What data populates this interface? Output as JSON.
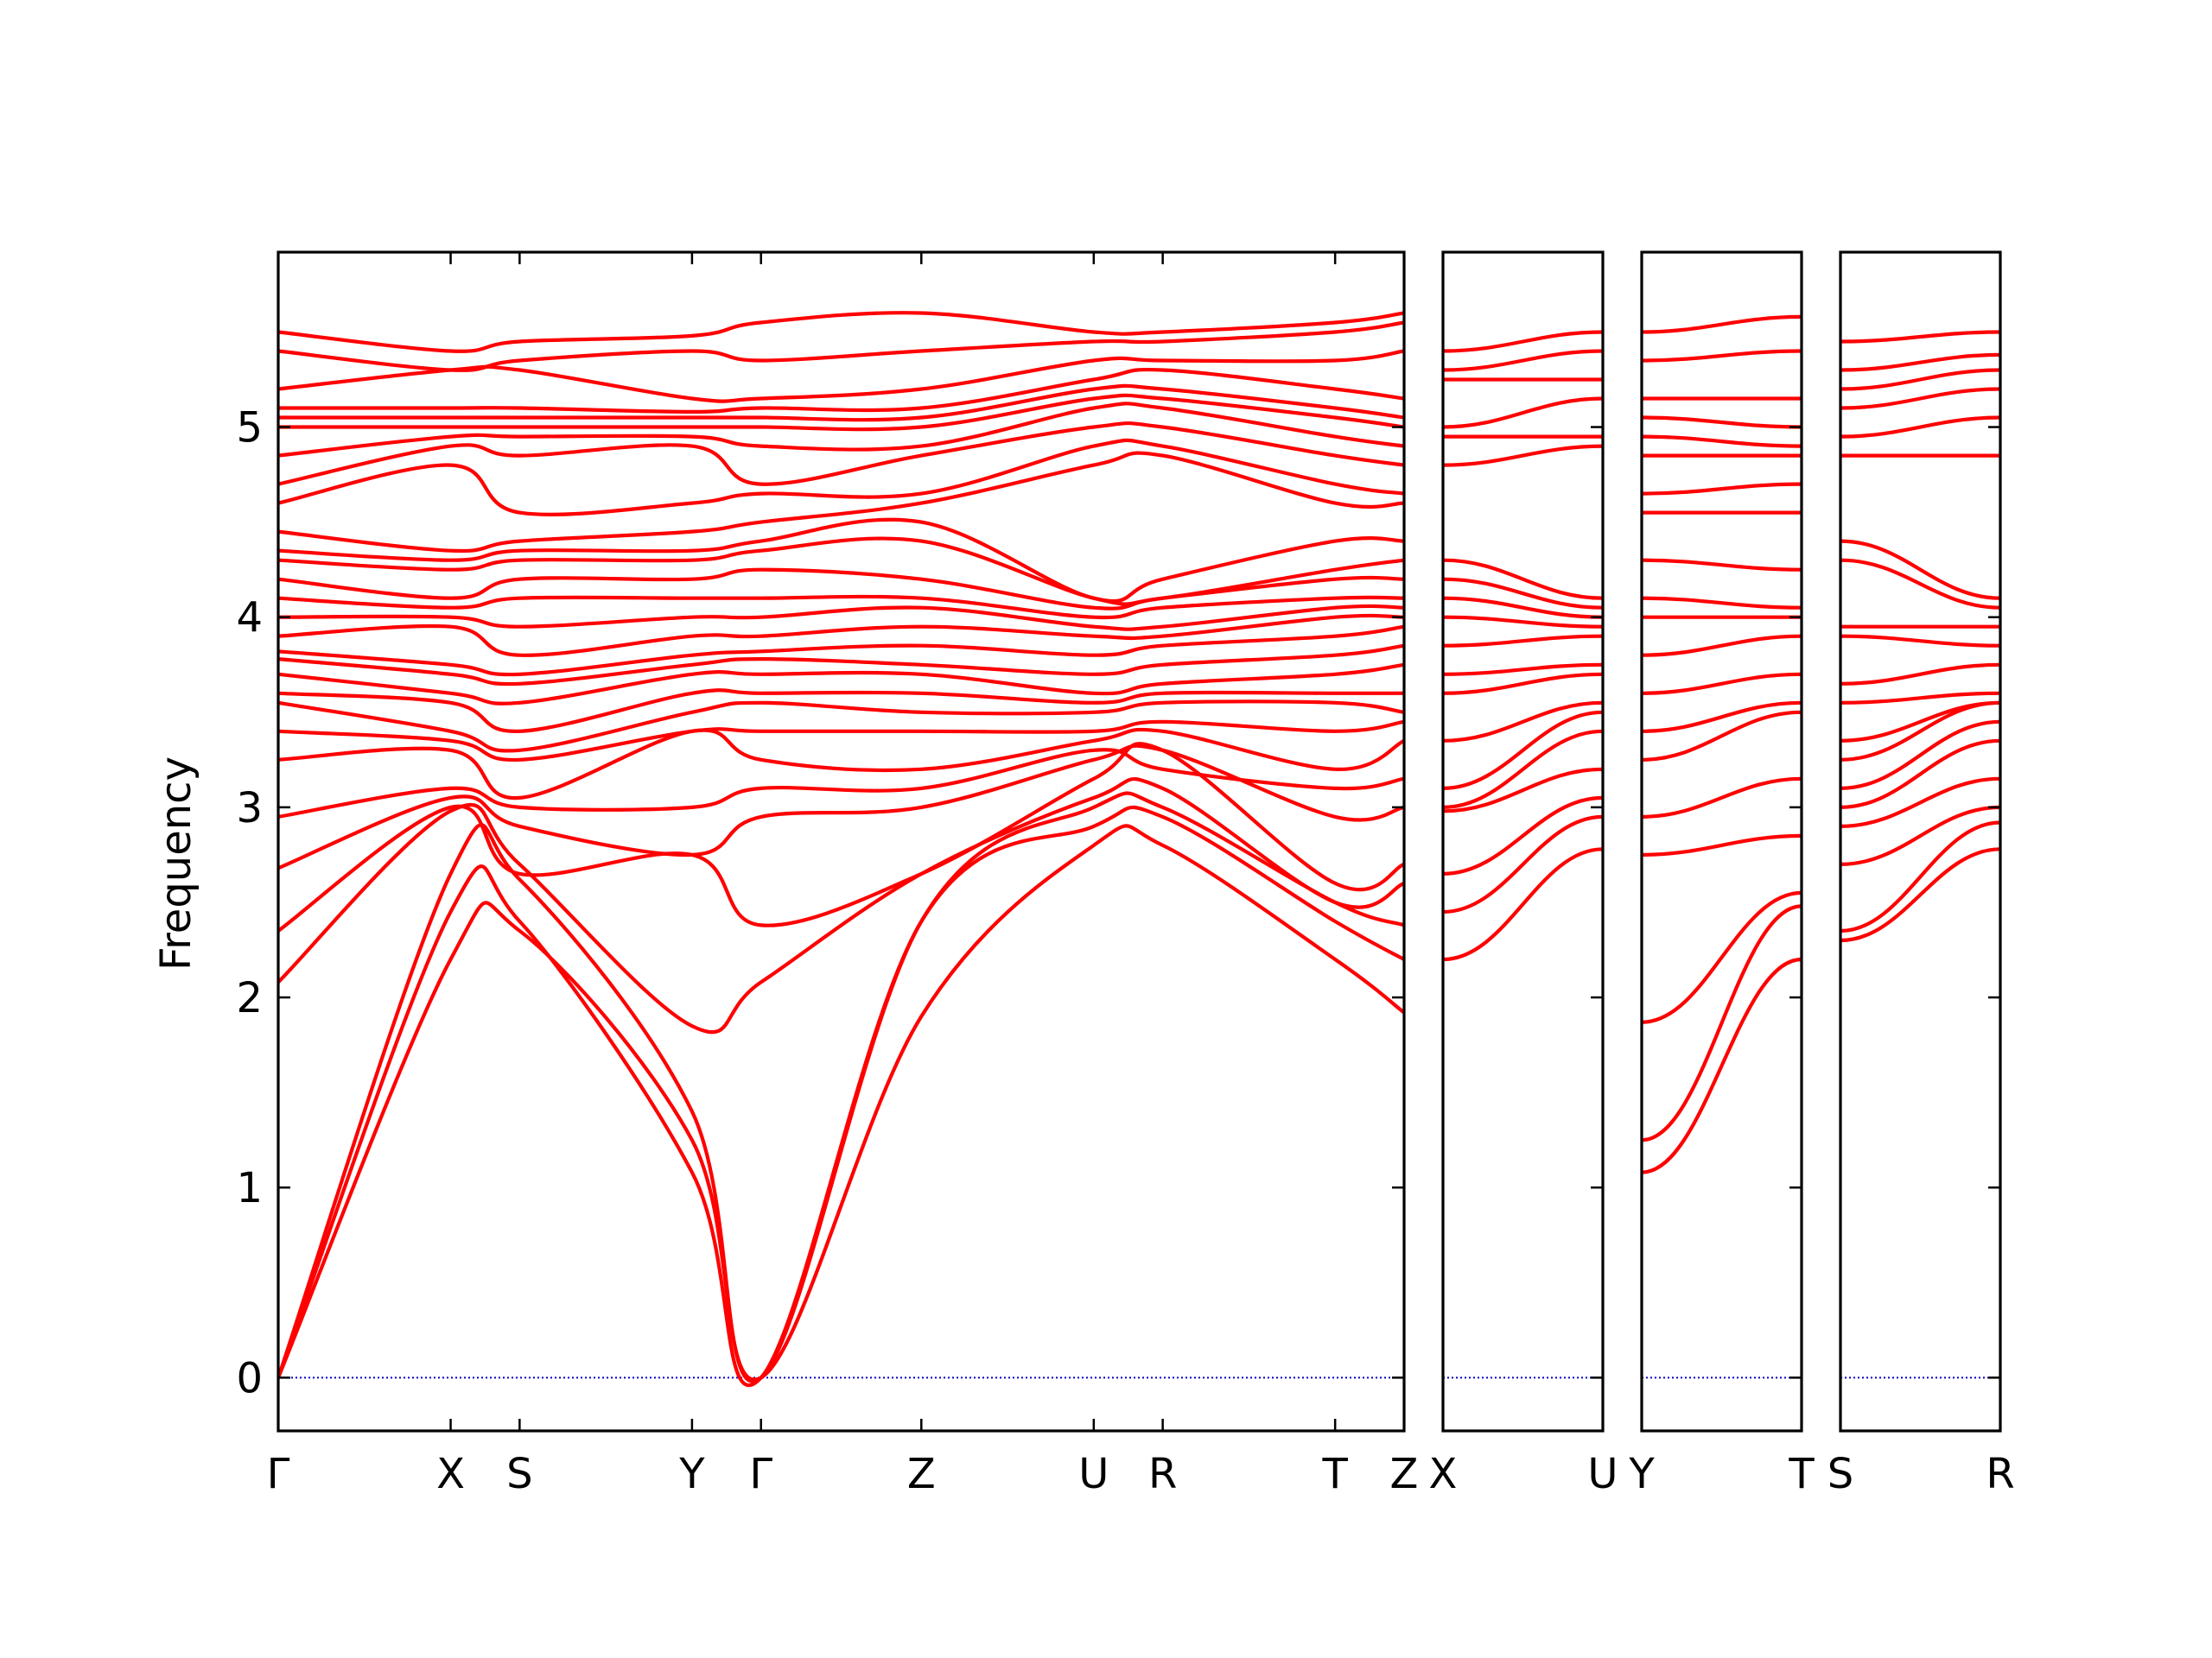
{
  "chart_data": {
    "type": "line",
    "title": "",
    "ylabel": "Frequency",
    "ylim": [
      -0.28,
      5.92
    ],
    "yticks": [
      0,
      1,
      2,
      3,
      4,
      5
    ],
    "colors": {
      "bands": "#ff0000",
      "zero_line": "#0000cc",
      "axes": "#000000"
    },
    "grid": false,
    "legend": "none",
    "panels": [
      {
        "path": "Γ-X-S-Y-Γ-Z-U-R-T-Z",
        "x": [
          0,
          1.0,
          1.4,
          2.4,
          2.8,
          3.73,
          4.73,
          5.13,
          6.13,
          6.53
        ],
        "tick_labels": [
          "Γ",
          "X",
          "S",
          "Y",
          "Γ",
          "Z",
          "U",
          "R",
          "T",
          "Z"
        ],
        "series": [
          {
            "values": [
              0,
              2.2,
              2.35,
              1.25,
              0,
              1.9,
              2.8,
              2.8,
              2.2,
              1.92
            ]
          },
          {
            "values": [
              0,
              2.45,
              2.4,
              1.08,
              0,
              2.4,
              2.9,
              2.95,
              2.4,
              2.2
            ]
          },
          {
            "values": [
              0,
              2.65,
              2.62,
              1.4,
              0,
              2.4,
              3.0,
              3.0,
              2.5,
              2.38
            ]
          },
          {
            "values": [
              2.08,
              2.98,
              2.7,
              1.85,
              2.08,
              2.65,
              3.05,
              3.1,
              2.5,
              2.6
            ]
          },
          {
            "values": [
              2.35,
              3.0,
              2.65,
              2.75,
              2.38,
              2.65,
              3.15,
              3.3,
              2.6,
              2.7
            ]
          },
          {
            "values": [
              2.68,
              3.05,
              2.9,
              2.75,
              2.95,
              3.0,
              3.25,
              3.3,
              2.95,
              3.0
            ]
          },
          {
            "values": [
              2.95,
              3.1,
              3.0,
              3.0,
              3.1,
              3.1,
              3.3,
              3.2,
              3.1,
              3.15
            ]
          },
          {
            "values": [
              3.25,
              3.3,
              3.05,
              3.4,
              3.25,
              3.2,
              3.35,
              3.4,
              3.2,
              3.35
            ]
          },
          {
            "values": [
              3.4,
              3.35,
              3.25,
              3.4,
              3.4,
              3.4,
              3.4,
              3.45,
              3.4,
              3.45
            ]
          },
          {
            "values": [
              3.55,
              3.4,
              3.3,
              3.5,
              3.55,
              3.5,
              3.5,
              3.55,
              3.55,
              3.5
            ]
          },
          {
            "values": [
              3.6,
              3.55,
              3.4,
              3.6,
              3.6,
              3.6,
              3.55,
              3.6,
              3.6,
              3.6
            ]
          },
          {
            "values": [
              3.7,
              3.6,
              3.55,
              3.7,
              3.7,
              3.7,
              3.6,
              3.65,
              3.7,
              3.75
            ]
          },
          {
            "values": [
              3.78,
              3.7,
              3.65,
              3.75,
              3.78,
              3.75,
              3.7,
              3.75,
              3.8,
              3.85
            ]
          },
          {
            "values": [
              3.82,
              3.75,
              3.7,
              3.8,
              3.82,
              3.85,
              3.8,
              3.85,
              3.9,
              3.95
            ]
          },
          {
            "values": [
              3.9,
              3.95,
              3.8,
              3.9,
              3.9,
              3.95,
              3.9,
              3.9,
              4.0,
              4.0
            ]
          },
          {
            "values": [
              4.0,
              4.0,
              3.95,
              4.0,
              4.0,
              4.05,
              3.95,
              3.95,
              4.05,
              4.05
            ]
          },
          {
            "values": [
              4.1,
              4.05,
              4.1,
              4.1,
              4.1,
              4.1,
              4.0,
              4.05,
              4.1,
              4.1
            ]
          },
          {
            "values": [
              4.2,
              4.1,
              4.2,
              4.2,
              4.25,
              4.2,
              4.05,
              4.1,
              4.2,
              4.2
            ]
          },
          {
            "values": [
              4.3,
              4.25,
              4.3,
              4.3,
              4.35,
              4.4,
              4.1,
              4.1,
              4.25,
              4.3
            ]
          },
          {
            "values": [
              4.35,
              4.3,
              4.35,
              4.35,
              4.4,
              4.5,
              4.1,
              4.2,
              4.4,
              4.4
            ]
          },
          {
            "values": [
              4.45,
              4.35,
              4.4,
              4.45,
              4.5,
              4.6,
              4.8,
              4.85,
              4.6,
              4.6
            ]
          },
          {
            "values": [
              4.6,
              4.8,
              4.55,
              4.6,
              4.65,
              4.65,
              4.9,
              4.9,
              4.7,
              4.65
            ]
          },
          {
            "values": [
              4.7,
              4.9,
              4.85,
              4.9,
              4.7,
              4.85,
              5.0,
              5.0,
              4.85,
              4.8
            ]
          },
          {
            "values": [
              4.85,
              4.95,
              4.95,
              4.95,
              4.9,
              4.9,
              5.1,
              5.1,
              4.95,
              4.9
            ]
          },
          {
            "values": [
              5.0,
              5.0,
              5.0,
              5.0,
              5.0,
              5.0,
              5.15,
              5.15,
              5.05,
              5.0
            ]
          },
          {
            "values": [
              5.05,
              5.05,
              5.05,
              5.05,
              5.05,
              5.05,
              5.2,
              5.2,
              5.1,
              5.05
            ]
          },
          {
            "values": [
              5.1,
              5.1,
              5.1,
              5.08,
              5.1,
              5.1,
              5.25,
              5.3,
              5.2,
              5.15
            ]
          },
          {
            "values": [
              5.2,
              5.3,
              5.3,
              5.15,
              5.15,
              5.2,
              5.35,
              5.35,
              5.35,
              5.4
            ]
          },
          {
            "values": [
              5.4,
              5.3,
              5.35,
              5.4,
              5.35,
              5.4,
              5.45,
              5.45,
              5.5,
              5.55
            ]
          },
          {
            "values": [
              5.5,
              5.4,
              5.45,
              5.48,
              5.55,
              5.6,
              5.5,
              5.5,
              5.55,
              5.6
            ]
          }
        ]
      },
      {
        "path": "X-U",
        "x": [
          0,
          1.0
        ],
        "tick_labels": [
          "X",
          "U"
        ],
        "series": [
          {
            "values": [
              2.2,
              2.78
            ]
          },
          {
            "values": [
              2.45,
              2.95
            ]
          },
          {
            "values": [
              2.65,
              3.05
            ]
          },
          {
            "values": [
              2.98,
              3.2
            ]
          },
          {
            "values": [
              3.0,
              3.4
            ]
          },
          {
            "values": [
              3.1,
              3.5
            ]
          },
          {
            "values": [
              3.35,
              3.55
            ]
          },
          {
            "values": [
              3.6,
              3.7
            ]
          },
          {
            "values": [
              3.7,
              3.75
            ]
          },
          {
            "values": [
              3.85,
              3.9
            ]
          },
          {
            "values": [
              4.0,
              3.95
            ]
          },
          {
            "values": [
              4.1,
              4.0
            ]
          },
          {
            "values": [
              4.2,
              4.05
            ]
          },
          {
            "values": [
              4.3,
              4.1
            ]
          },
          {
            "values": [
              4.8,
              4.9
            ]
          },
          {
            "values": [
              4.95,
              4.95
            ]
          },
          {
            "values": [
              5.0,
              5.15
            ]
          },
          {
            "values": [
              5.25,
              5.25
            ]
          },
          {
            "values": [
              5.3,
              5.4
            ]
          },
          {
            "values": [
              5.4,
              5.5
            ]
          }
        ]
      },
      {
        "path": "Y-T",
        "x": [
          0,
          1.0
        ],
        "tick_labels": [
          "Y",
          "T"
        ],
        "series": [
          {
            "values": [
              1.08,
              2.2
            ]
          },
          {
            "values": [
              1.25,
              2.48
            ]
          },
          {
            "values": [
              1.87,
              2.55
            ]
          },
          {
            "values": [
              2.75,
              2.85
            ]
          },
          {
            "values": [
              2.95,
              3.15
            ]
          },
          {
            "values": [
              3.25,
              3.5
            ]
          },
          {
            "values": [
              3.4,
              3.55
            ]
          },
          {
            "values": [
              3.6,
              3.7
            ]
          },
          {
            "values": [
              3.8,
              3.9
            ]
          },
          {
            "values": [
              4.0,
              4.0
            ]
          },
          {
            "values": [
              4.1,
              4.05
            ]
          },
          {
            "values": [
              4.3,
              4.25
            ]
          },
          {
            "values": [
              4.55,
              4.55
            ]
          },
          {
            "values": [
              4.65,
              4.7
            ]
          },
          {
            "values": [
              4.85,
              4.85
            ]
          },
          {
            "values": [
              4.95,
              4.9
            ]
          },
          {
            "values": [
              5.05,
              5.0
            ]
          },
          {
            "values": [
              5.15,
              5.15
            ]
          },
          {
            "values": [
              5.35,
              5.4
            ]
          },
          {
            "values": [
              5.5,
              5.58
            ]
          }
        ]
      },
      {
        "path": "S-R",
        "x": [
          0,
          1.0
        ],
        "tick_labels": [
          "S",
          "R"
        ],
        "series": [
          {
            "values": [
              2.3,
              2.78
            ]
          },
          {
            "values": [
              2.35,
              2.92
            ]
          },
          {
            "values": [
              2.7,
              3.0
            ]
          },
          {
            "values": [
              2.9,
              3.15
            ]
          },
          {
            "values": [
              3.0,
              3.35
            ]
          },
          {
            "values": [
              3.1,
              3.45
            ]
          },
          {
            "values": [
              3.25,
              3.55
            ]
          },
          {
            "values": [
              3.35,
              3.55
            ]
          },
          {
            "values": [
              3.55,
              3.6
            ]
          },
          {
            "values": [
              3.65,
              3.75
            ]
          },
          {
            "values": [
              3.9,
              3.85
            ]
          },
          {
            "values": [
              3.95,
              3.95
            ]
          },
          {
            "values": [
              4.3,
              4.05
            ]
          },
          {
            "values": [
              4.4,
              4.1
            ]
          },
          {
            "values": [
              4.85,
              4.85
            ]
          },
          {
            "values": [
              4.95,
              5.05
            ]
          },
          {
            "values": [
              5.1,
              5.2
            ]
          },
          {
            "values": [
              5.2,
              5.3
            ]
          },
          {
            "values": [
              5.3,
              5.38
            ]
          },
          {
            "values": [
              5.45,
              5.5
            ]
          }
        ]
      }
    ]
  }
}
